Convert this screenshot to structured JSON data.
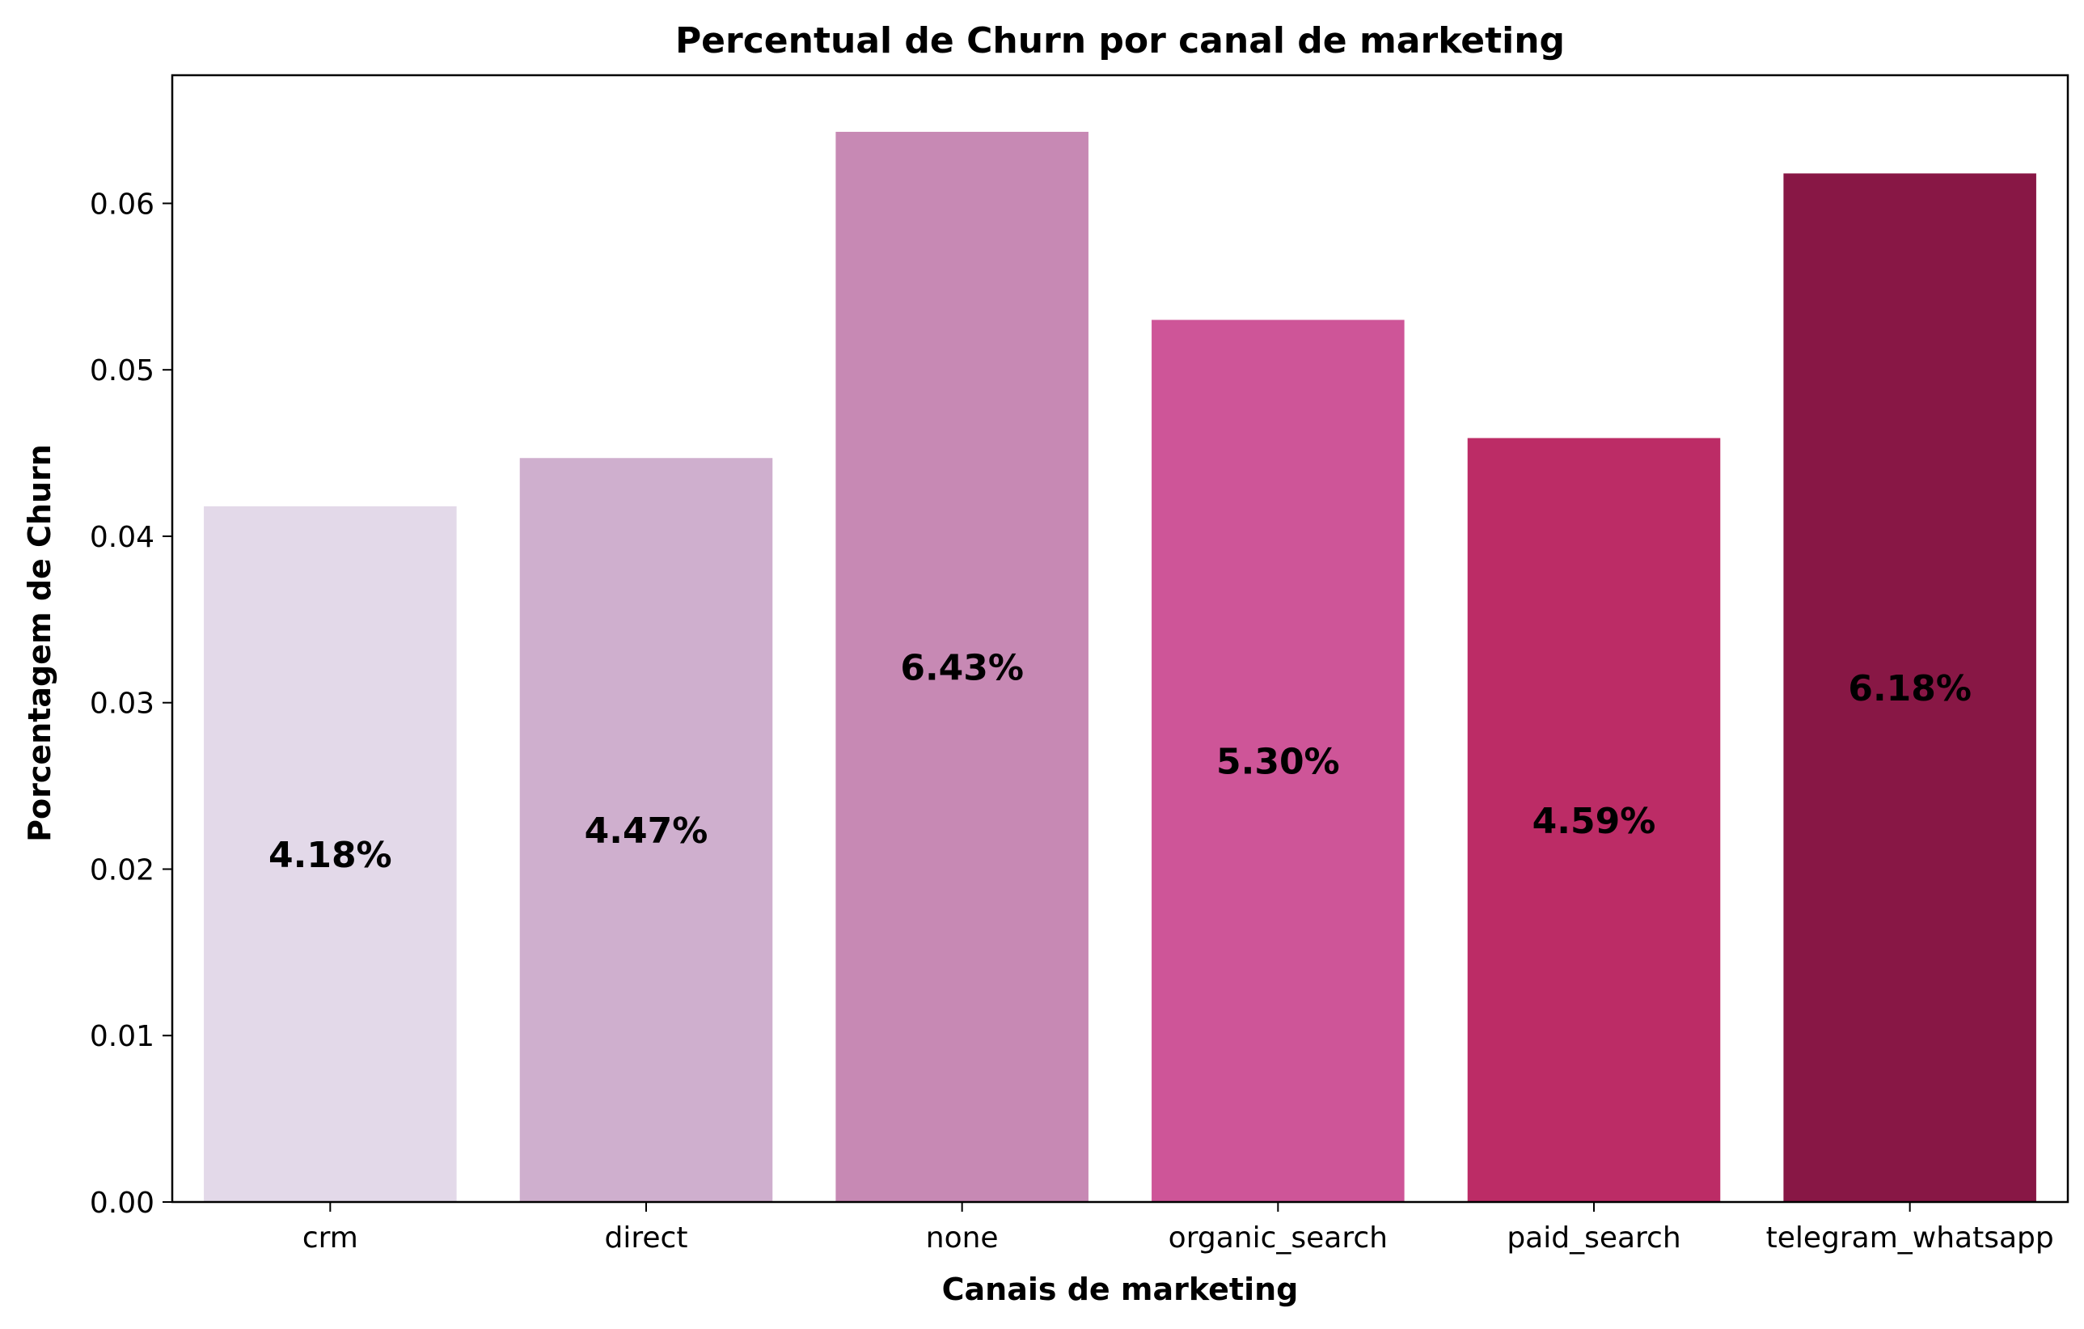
{
  "chart_data": {
    "type": "bar",
    "title": "Percentual de Churn por canal de marketing",
    "xlabel": "Canais de marketing",
    "ylabel": "Porcentagem de Churn",
    "categories": [
      "crm",
      "direct",
      "none",
      "organic_search",
      "paid_search",
      "telegram_whatsapp"
    ],
    "values": [
      0.0418,
      0.0447,
      0.0643,
      0.053,
      0.0459,
      0.0618
    ],
    "data_labels": [
      "4.18%",
      "4.47%",
      "6.43%",
      "5.30%",
      "4.59%",
      "6.18%"
    ],
    "colors": [
      "#e3d9e9",
      "#cfafce",
      "#c789b4",
      "#ce5598",
      "#bc2c66",
      "#881745"
    ],
    "ylim": [
      0,
      0.0677
    ],
    "yticks": [
      0.0,
      0.01,
      0.02,
      0.03,
      0.04,
      0.05,
      0.06
    ],
    "ytick_labels": [
      "0.00",
      "0.01",
      "0.02",
      "0.03",
      "0.04",
      "0.05",
      "0.06"
    ],
    "grid": false,
    "legend": "none"
  }
}
